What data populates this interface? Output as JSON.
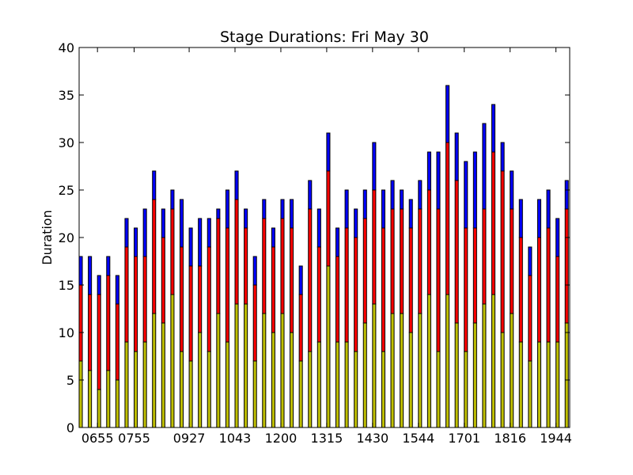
{
  "chart_data": {
    "type": "bar",
    "stacked": true,
    "title": "Stage Durations: Fri May 30",
    "xlabel": "",
    "ylabel": "Duration",
    "ylim": [
      0,
      40
    ],
    "yticks": [
      0,
      5,
      10,
      15,
      20,
      25,
      30,
      35,
      40
    ],
    "xtick_labels": [
      {
        "index": 2,
        "label": "0655"
      },
      {
        "index": 6,
        "label": "0755"
      },
      {
        "index": 12,
        "label": "0927"
      },
      {
        "index": 17,
        "label": "1043"
      },
      {
        "index": 22,
        "label": "1200"
      },
      {
        "index": 27,
        "label": "1315"
      },
      {
        "index": 32,
        "label": "1430"
      },
      {
        "index": 37,
        "label": "1544"
      },
      {
        "index": 42,
        "label": "1701"
      },
      {
        "index": 47,
        "label": "1816"
      },
      {
        "index": 52,
        "label": "1944"
      }
    ],
    "grid": false,
    "colors": {
      "bottom": "#bfbf00",
      "middle": "#ff0000",
      "top": "#0000ff",
      "edge": "#000000"
    },
    "series": [
      {
        "values": [
          7,
          6,
          4,
          6,
          5,
          9,
          8,
          9,
          12,
          11,
          14,
          8,
          7,
          10,
          8,
          12,
          9,
          13,
          13,
          7,
          12,
          10,
          12,
          10,
          7,
          8,
          9,
          17,
          9,
          9,
          8,
          11,
          13,
          8,
          12,
          12,
          10,
          12,
          14,
          8,
          14,
          11,
          8,
          11,
          13,
          14,
          10,
          12,
          9,
          7,
          9,
          9,
          9,
          11
        ]
      },
      {
        "values": [
          8,
          8,
          10,
          10,
          8,
          10,
          10,
          9,
          12,
          9,
          9,
          11,
          10,
          7,
          11,
          10,
          12,
          11,
          8,
          8,
          10,
          9,
          10,
          11,
          7,
          15,
          10,
          10,
          9,
          12,
          12,
          11,
          12,
          13,
          11,
          11,
          11,
          11,
          11,
          15,
          16,
          15,
          13,
          10,
          10,
          15,
          17,
          11,
          11,
          9,
          11,
          12,
          9,
          12
        ]
      },
      {
        "values": [
          3,
          4,
          2,
          2,
          3,
          3,
          3,
          5,
          3,
          3,
          2,
          5,
          4,
          5,
          3,
          1,
          4,
          3,
          2,
          3,
          2,
          2,
          2,
          3,
          3,
          3,
          4,
          4,
          3,
          4,
          3,
          3,
          5,
          4,
          3,
          2,
          3,
          3,
          4,
          6,
          6,
          5,
          7,
          8,
          9,
          5,
          3,
          4,
          4,
          3,
          4,
          4,
          4,
          3
        ]
      }
    ]
  }
}
